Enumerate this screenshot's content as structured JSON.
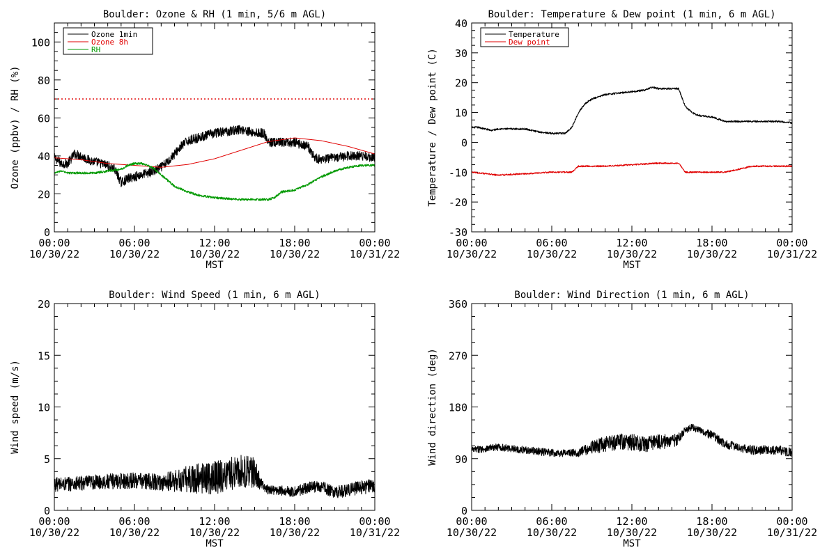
{
  "chart_data": [
    {
      "type": "line",
      "title": "Boulder: Ozone & RH (1 min, 5/6 m AGL)",
      "ylabel": "Ozone (ppbv) / RH (%)",
      "xlabel": "MST",
      "ylim": [
        0,
        110
      ],
      "yticks": [
        "0",
        "20",
        "40",
        "60",
        "80",
        "100"
      ],
      "ytick_values": [
        0,
        20,
        40,
        60,
        80,
        100
      ],
      "xlim": [
        0,
        24
      ],
      "xticks": [
        {
          "time": "00:00",
          "date": "10/30/22"
        },
        {
          "time": "06:00",
          "date": "10/30/22"
        },
        {
          "time": "12:00",
          "date": "10/30/22"
        },
        {
          "time": "18:00",
          "date": "10/30/22"
        },
        {
          "time": "00:00",
          "date": "10/31/22"
        }
      ],
      "legend": "top-left",
      "reference_line": {
        "y": 70,
        "color": "#e00000",
        "style": "dotted"
      },
      "series": [
        {
          "name": "Ozone 1min",
          "color": "#000000",
          "noise": 2.5,
          "x": [
            0,
            0.5,
            1,
            1.5,
            2,
            2.5,
            3,
            4,
            4.5,
            5,
            5.5,
            6,
            7,
            7.5,
            8,
            8.5,
            9,
            9.5,
            10,
            11,
            12,
            13,
            14,
            15,
            15.7,
            16,
            17,
            18,
            19,
            19.5,
            20,
            21,
            22,
            23,
            24
          ],
          "y": [
            39,
            36,
            36,
            41,
            40,
            38,
            37,
            35,
            33,
            26,
            28,
            29,
            31,
            32,
            34,
            37,
            41,
            45,
            48,
            50,
            52,
            53,
            54,
            52,
            52,
            47,
            47,
            47,
            45,
            39,
            38,
            39,
            40,
            40,
            39
          ]
        },
        {
          "name": "Ozone 8h",
          "color": "#e00000",
          "noise": 0,
          "x": [
            0,
            2,
            4,
            6,
            8,
            10,
            12,
            14,
            16,
            18,
            20,
            22,
            24
          ],
          "y": [
            39,
            38,
            36,
            35,
            34,
            35.5,
            38.5,
            43,
            47.5,
            49.5,
            48,
            45,
            41
          ]
        },
        {
          "name": "RH",
          "color": "#009900",
          "noise": 0.6,
          "x": [
            0,
            0.5,
            1,
            2,
            3,
            4,
            5,
            5.5,
            6,
            6.5,
            7,
            7.5,
            8,
            8.5,
            9,
            10,
            11,
            12,
            13,
            14,
            15,
            16,
            16.5,
            17,
            18,
            19,
            20,
            21,
            22,
            23,
            24
          ],
          "y": [
            31,
            32,
            31,
            31,
            31,
            32,
            33,
            35,
            36,
            36,
            35,
            33,
            30,
            27,
            24,
            21,
            19,
            18,
            17.5,
            17,
            17,
            17,
            18,
            21,
            22,
            25,
            29,
            32,
            34,
            35,
            35
          ]
        }
      ]
    },
    {
      "type": "line",
      "title": "Boulder: Temperature & Dew point (1 min, 6 m AGL)",
      "ylabel": "Temperature / Dew point (C)",
      "xlabel": "MST",
      "ylim": [
        -30,
        40
      ],
      "yticks": [
        "-30",
        "-20",
        "-10",
        "0",
        "10",
        "20",
        "30",
        "40"
      ],
      "ytick_values": [
        -30,
        -20,
        -10,
        0,
        10,
        20,
        30,
        40
      ],
      "xlim": [
        0,
        24
      ],
      "xticks": [
        {
          "time": "00:00",
          "date": "10/30/22"
        },
        {
          "time": "06:00",
          "date": "10/30/22"
        },
        {
          "time": "12:00",
          "date": "10/30/22"
        },
        {
          "time": "18:00",
          "date": "10/30/22"
        },
        {
          "time": "00:00",
          "date": "10/31/22"
        }
      ],
      "legend": "top-left",
      "series": [
        {
          "name": "Temperature",
          "color": "#000000",
          "noise": 0.3,
          "x": [
            0,
            0.5,
            1,
            1.5,
            2,
            3,
            4,
            5,
            6,
            6.5,
            7,
            7.5,
            8,
            8.5,
            9,
            10,
            11,
            12,
            13,
            13.5,
            14,
            15,
            15.5,
            16,
            16.5,
            17,
            18,
            19,
            20,
            21,
            22,
            23,
            24
          ],
          "y": [
            5,
            5,
            4.5,
            4,
            4.5,
            4.5,
            4.5,
            3.5,
            3,
            3,
            3,
            5,
            10,
            13,
            14.5,
            16,
            16.5,
            17,
            17.5,
            18.5,
            18,
            18,
            18,
            12,
            10,
            9,
            8.5,
            7,
            7,
            7,
            7,
            7,
            6.5
          ]
        },
        {
          "name": "Dew point",
          "color": "#e00000",
          "noise": 0.25,
          "x": [
            0,
            2,
            4,
            6,
            7,
            7.5,
            8,
            9,
            10,
            12,
            14,
            15.5,
            16,
            17,
            18,
            19,
            20,
            21,
            22,
            24
          ],
          "y": [
            -10,
            -11,
            -10.5,
            -10,
            -10,
            -10,
            -8,
            -8,
            -8,
            -7.5,
            -7,
            -7,
            -10,
            -10,
            -10,
            -10,
            -9,
            -8,
            -8,
            -8
          ]
        }
      ]
    },
    {
      "type": "line",
      "title": "Boulder: Wind Speed (1 min, 6 m AGL)",
      "ylabel": "Wind speed (m/s)",
      "xlabel": "MST",
      "ylim": [
        0,
        20
      ],
      "yticks": [
        "0",
        "5",
        "10",
        "15",
        "20"
      ],
      "ytick_values": [
        0,
        5,
        10,
        15,
        20
      ],
      "xlim": [
        0,
        24
      ],
      "xticks": [
        {
          "time": "00:00",
          "date": "10/30/22"
        },
        {
          "time": "06:00",
          "date": "10/30/22"
        },
        {
          "time": "12:00",
          "date": "10/30/22"
        },
        {
          "time": "18:00",
          "date": "10/30/22"
        },
        {
          "time": "00:00",
          "date": "10/31/22"
        }
      ],
      "series": [
        {
          "name": "",
          "color": "#000000",
          "x": [
            0,
            2,
            4,
            6,
            8,
            10,
            11,
            12,
            13,
            14,
            15,
            15.5,
            16,
            17,
            18,
            19,
            20,
            21,
            22,
            23,
            24
          ],
          "y": [
            2.5,
            2.6,
            2.8,
            2.9,
            2.7,
            3.0,
            3.1,
            3.2,
            3.5,
            3.8,
            3.6,
            2.5,
            2.0,
            1.9,
            1.8,
            2.2,
            2.3,
            1.7,
            2.0,
            2.2,
            2.4
          ],
          "noise_x": [
            0,
            8,
            10,
            12,
            15,
            15.5,
            16,
            24
          ],
          "noise": [
            0.7,
            0.8,
            1.3,
            1.7,
            1.5,
            0.6,
            0.45,
            0.7
          ]
        }
      ]
    },
    {
      "type": "line",
      "title": "Boulder: Wind Direction (1 min, 6 m AGL)",
      "ylabel": "Wind direction (deg)",
      "xlabel": "MST",
      "ylim": [
        0,
        360
      ],
      "yticks": [
        "0",
        "90",
        "180",
        "270",
        "360"
      ],
      "ytick_values": [
        0,
        90,
        180,
        270,
        360
      ],
      "xlim": [
        0,
        24
      ],
      "xticks": [
        {
          "time": "00:00",
          "date": "10/30/22"
        },
        {
          "time": "06:00",
          "date": "10/30/22"
        },
        {
          "time": "12:00",
          "date": "10/30/22"
        },
        {
          "time": "18:00",
          "date": "10/30/22"
        },
        {
          "time": "00:00",
          "date": "10/31/22"
        }
      ],
      "series": [
        {
          "name": "",
          "color": "#000000",
          "x": [
            0,
            2,
            4,
            6,
            8,
            9,
            10,
            11,
            12,
            13,
            14,
            15,
            15.5,
            16,
            16.5,
            17,
            18,
            19,
            20,
            21,
            22,
            23,
            24
          ],
          "y": [
            105,
            110,
            105,
            100,
            100,
            110,
            115,
            120,
            118,
            115,
            120,
            120,
            125,
            140,
            145,
            140,
            130,
            115,
            110,
            105,
            105,
            105,
            100
          ],
          "noise_x": [
            0,
            8,
            9.5,
            12,
            14,
            15.5,
            16,
            17,
            18,
            24
          ],
          "noise": [
            6,
            7,
            13,
            15,
            14,
            10,
            6,
            6,
            8,
            8
          ]
        }
      ]
    }
  ]
}
